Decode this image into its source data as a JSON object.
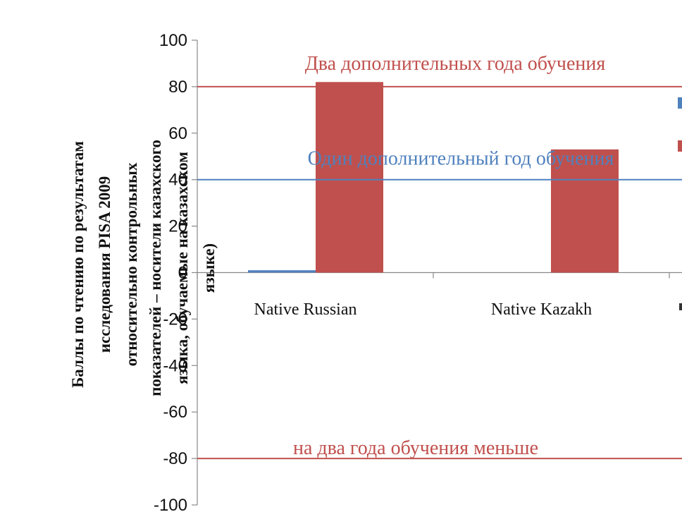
{
  "chart_data": {
    "type": "bar",
    "categories": [
      "Native Russian",
      "Native Kazakh",
      ""
    ],
    "series": [
      {
        "color": "#4F81BD",
        "values": [
          1,
          null,
          null
        ]
      },
      {
        "color": "#C0504D",
        "values": [
          82,
          null,
          null
        ]
      }
    ],
    "second_group_values": [
      null,
      53,
      null
    ],
    "ylim": [
      -100,
      100
    ],
    "yticks": [
      100,
      80,
      60,
      40,
      20,
      0,
      -20,
      -40,
      -60,
      -80,
      -100
    ],
    "ytick_labels": [
      "100",
      "80",
      "60",
      "40",
      "20",
      "0",
      "-20",
      "-40",
      "-60",
      "-80",
      "-100"
    ],
    "ylabel_lines": [
      "Баллы по чтению по результатам",
      "исследования PISA 2009",
      "относительно  контрольных",
      "показателей – носители казахского",
      "языка, обучаемые на казахском",
      "языке)"
    ],
    "reference_lines": [
      {
        "value": 80,
        "label": "Два дополнительных года обучения",
        "color": "#C0504D"
      },
      {
        "value": 40,
        "label": "Один дополнительный год обучения",
        "color": "#4F81BD"
      },
      {
        "value": -80,
        "label": "на два года обучения меньше",
        "color": "#C0504D"
      }
    ],
    "grid": false,
    "legend_position": "right"
  }
}
